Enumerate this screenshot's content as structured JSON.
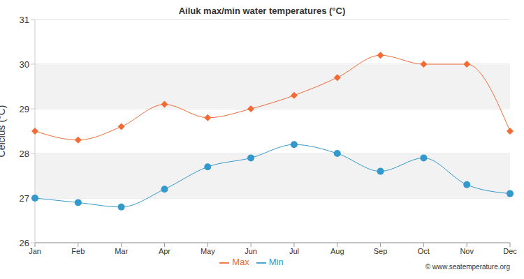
{
  "chart_data": {
    "type": "line",
    "title": "Ailuk max/min water temperatures (°C)",
    "y_label": "Celcius (°C)",
    "annotations": [
      "© www.seatemperature.org"
    ],
    "categories": [
      "Jan",
      "Feb",
      "Mar",
      "Apr",
      "May",
      "Jun",
      "Jul",
      "Aug",
      "Sep",
      "Oct",
      "Nov",
      "Dec"
    ],
    "series": [
      {
        "name": "Max",
        "color": "#f26a35",
        "marker": "diamond",
        "line_style": "smooth",
        "values": [
          28.5,
          28.3,
          28.6,
          29.1,
          28.8,
          29.0,
          29.3,
          29.7,
          30.2,
          30.0,
          30.0,
          28.5
        ]
      },
      {
        "name": "Min",
        "color": "#3399cc",
        "marker": "circle",
        "line_style": "smooth",
        "values": [
          27.0,
          26.9,
          26.8,
          27.2,
          27.7,
          27.9,
          28.2,
          28.0,
          27.6,
          27.9,
          27.3,
          27.1
        ]
      }
    ],
    "ylim": [
      26,
      31
    ],
    "yticks": [
      26,
      27,
      28,
      29,
      30,
      31
    ],
    "grid": true,
    "legend": "bottom"
  }
}
